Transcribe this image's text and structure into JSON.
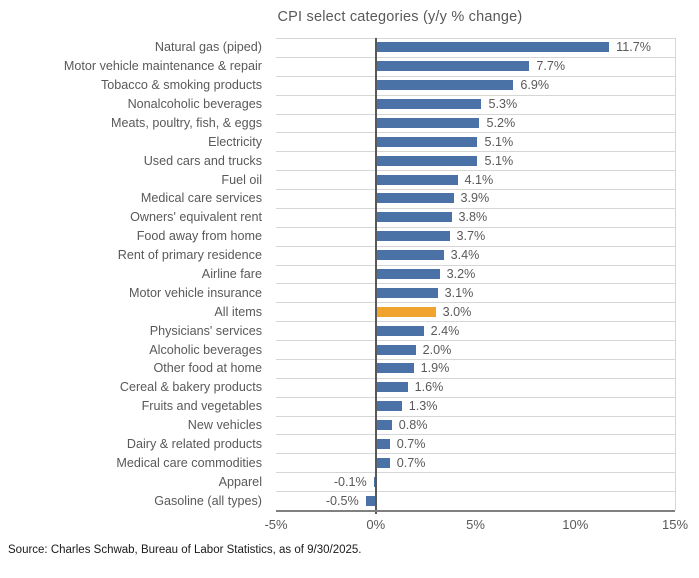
{
  "chart_data": {
    "type": "bar",
    "orientation": "horizontal",
    "title": "CPI select categories (y/y % change)",
    "categories": [
      "Natural gas (piped)",
      "Motor vehicle maintenance & repair",
      "Tobacco & smoking products",
      "Nonalcoholic beverages",
      "Meats, poultry, fish, & eggs",
      "Electricity",
      "Used cars and trucks",
      "Fuel oil",
      "Medical care services",
      "Owners' equivalent rent",
      "Food away from home",
      "Rent of primary residence",
      "Airline fare",
      "Motor vehicle insurance",
      "All items",
      "Physicians' services",
      "Alcoholic beverages",
      "Other food at home",
      "Cereal & bakery products",
      "Fruits and vegetables",
      "New vehicles",
      "Dairy & related products",
      "Medical care commodities",
      "Apparel",
      "Gasoline (all types)"
    ],
    "values": [
      11.7,
      7.7,
      6.9,
      5.3,
      5.2,
      5.1,
      5.1,
      4.1,
      3.9,
      3.8,
      3.7,
      3.4,
      3.2,
      3.1,
      3.0,
      2.4,
      2.0,
      1.9,
      1.6,
      1.3,
      0.8,
      0.7,
      0.7,
      -0.1,
      -0.5
    ],
    "unit": "%",
    "highlight_category": "All items",
    "highlight_index": 14,
    "bar_color": "#4A72A6",
    "highlight_color": "#F0A42D",
    "xlim": [
      -5,
      15
    ],
    "x_ticks": [
      {
        "value": -5,
        "label": "-5%"
      },
      {
        "value": 0,
        "label": "0%"
      },
      {
        "value": 5,
        "label": "5%"
      },
      {
        "value": 10,
        "label": "10%"
      },
      {
        "value": 15,
        "label": "15%"
      }
    ],
    "grid": "horizontal-row-separators",
    "legend": "none"
  },
  "footer": {
    "source": "Source: Charles Schwab, Bureau of Labor Statistics, as of 9/30/2025."
  }
}
